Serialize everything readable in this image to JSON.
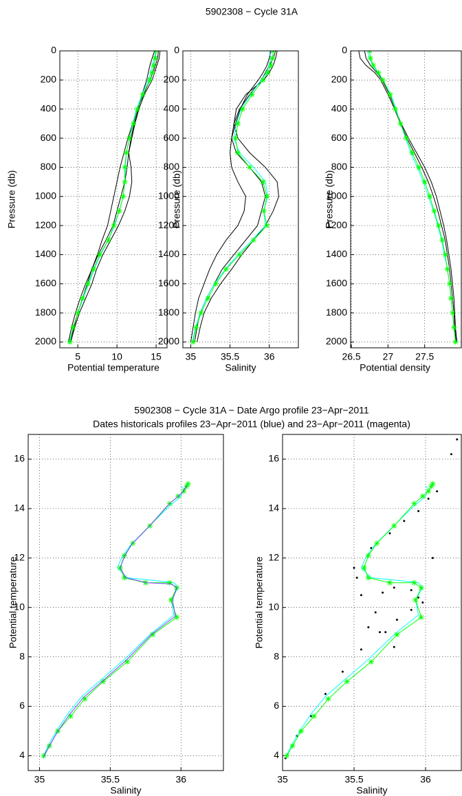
{
  "chart_data": [
    {
      "type": "profile",
      "title": "5902308 − Cycle  31A",
      "xlabel": "Potential temperature",
      "ylabel": "Pressure (db)",
      "xlim": [
        2.7,
        16.4
      ],
      "ylim": [
        0,
        2040
      ],
      "yreverse": true,
      "grid": true,
      "xticks": [
        5,
        10,
        15
      ],
      "yticks": [
        0,
        200,
        400,
        600,
        800,
        1000,
        1200,
        1400,
        1600,
        1800,
        2000
      ],
      "y": [
        0,
        50,
        100,
        150,
        200,
        300,
        400,
        500,
        600,
        700,
        800,
        900,
        1000,
        1100,
        1200,
        1300,
        1400,
        1500,
        1600,
        1700,
        1800,
        1900,
        2000
      ],
      "series": [
        {
          "color": "#000000",
          "values": [
            14.8,
            14.5,
            14.2,
            14.0,
            13.8,
            13.2,
            12.7,
            12.2,
            11.8,
            11.5,
            11.3,
            11.0,
            10.5,
            10.0,
            9.5,
            8.6,
            7.6,
            6.8,
            6.2,
            5.6,
            5.0,
            4.5,
            4.0
          ]
        },
        {
          "color": "#000000",
          "values": [
            15.3,
            15.2,
            14.9,
            14.6,
            14.2,
            13.4,
            12.6,
            12.0,
            11.4,
            10.9,
            10.4,
            10.0,
            9.6,
            9.2,
            8.8,
            8.1,
            7.5,
            6.8,
            6.0,
            5.3,
            4.7,
            4.2,
            3.8
          ]
        },
        {
          "color": "#000000",
          "values": [
            15.5,
            15.4,
            15.1,
            14.8,
            14.5,
            13.5,
            12.8,
            12.3,
            11.9,
            11.5,
            11.8,
            11.9,
            11.6,
            11.0,
            10.2,
            9.2,
            8.2,
            7.4,
            6.8,
            6.0,
            5.2,
            4.6,
            4.1
          ]
        },
        {
          "color": "#00ffff",
          "values": [
            14.9,
            14.8,
            14.5,
            14.3,
            14.0,
            13.2,
            12.5,
            12.0,
            11.6,
            11.2,
            11.1,
            11.0,
            10.8,
            10.3,
            9.7,
            8.9,
            7.9,
            7.1,
            6.4,
            5.7,
            5.0,
            4.4,
            3.9
          ]
        },
        {
          "color": "#00ff00",
          "marker": "star",
          "values": [
            15.0,
            14.9,
            14.7,
            14.5,
            14.2,
            13.3,
            12.6,
            12.1,
            11.6,
            11.2,
            11.0,
            11.0,
            10.8,
            10.3,
            9.6,
            8.9,
            7.8,
            7.0,
            6.3,
            5.6,
            5.0,
            4.4,
            4.0
          ]
        }
      ]
    },
    {
      "type": "profile",
      "xlabel": "Salinity",
      "ylabel": "Pressure (db)",
      "xlim": [
        34.9,
        36.37
      ],
      "ylim": [
        0,
        2040
      ],
      "yreverse": true,
      "grid": true,
      "xticks": [
        35,
        35.5,
        36
      ],
      "yticks": [
        0,
        200,
        400,
        600,
        800,
        1000,
        1200,
        1400,
        1600,
        1800,
        2000
      ],
      "y": [
        0,
        50,
        100,
        150,
        200,
        300,
        400,
        500,
        600,
        700,
        800,
        900,
        1000,
        1100,
        1200,
        1300,
        1400,
        1500,
        1600,
        1700,
        1800,
        1900,
        2000
      ],
      "series": [
        {
          "color": "#000000",
          "values": [
            36.08,
            36.05,
            36.0,
            35.95,
            35.9,
            35.75,
            35.62,
            35.55,
            35.52,
            35.58,
            35.75,
            35.9,
            35.95,
            35.9,
            35.85,
            35.7,
            35.55,
            35.4,
            35.3,
            35.2,
            35.12,
            35.08,
            35.05
          ]
        },
        {
          "color": "#000000",
          "values": [
            36.1,
            36.08,
            36.05,
            36.0,
            35.93,
            35.7,
            35.58,
            35.55,
            35.6,
            35.75,
            35.95,
            36.1,
            36.12,
            36.05,
            35.95,
            35.8,
            35.65,
            35.52,
            35.38,
            35.26,
            35.17,
            35.12,
            35.08
          ]
        },
        {
          "color": "#000000",
          "values": [
            36.02,
            36.0,
            35.97,
            35.92,
            35.86,
            35.72,
            35.63,
            35.57,
            35.52,
            35.5,
            35.52,
            35.6,
            35.7,
            35.68,
            35.6,
            35.45,
            35.33,
            35.24,
            35.17,
            35.1,
            35.06,
            35.03,
            35.0
          ]
        },
        {
          "color": "#00ffff",
          "values": [
            36.0,
            36.02,
            36.0,
            35.96,
            35.9,
            35.76,
            35.64,
            35.58,
            35.55,
            35.62,
            35.8,
            35.95,
            35.98,
            35.93,
            35.95,
            35.78,
            35.6,
            35.44,
            35.3,
            35.2,
            35.12,
            35.06,
            35.02
          ]
        },
        {
          "color": "#00ff00",
          "marker": "star",
          "values": [
            36.05,
            36.04,
            36.02,
            35.98,
            35.92,
            35.78,
            35.66,
            35.6,
            35.57,
            35.6,
            35.75,
            35.92,
            35.97,
            35.93,
            35.97,
            35.8,
            35.62,
            35.45,
            35.32,
            35.22,
            35.13,
            35.07,
            35.03
          ]
        }
      ]
    },
    {
      "type": "profile",
      "xlabel": "Potential density",
      "ylabel": "Pressure (db)",
      "xlim": [
        26.49,
        28.0
      ],
      "ylim": [
        0,
        2040
      ],
      "yreverse": true,
      "grid": true,
      "xticks": [
        26.5,
        27,
        27.5
      ],
      "yticks": [
        0,
        200,
        400,
        600,
        800,
        1000,
        1200,
        1400,
        1600,
        1800,
        2000
      ],
      "y": [
        0,
        50,
        100,
        150,
        200,
        300,
        400,
        500,
        600,
        700,
        800,
        900,
        1000,
        1100,
        1200,
        1300,
        1400,
        1500,
        1600,
        1700,
        1800,
        1900,
        2000
      ],
      "series": [
        {
          "color": "#000000",
          "values": [
            26.6,
            26.62,
            26.7,
            26.82,
            26.9,
            27.0,
            27.09,
            27.17,
            27.26,
            27.36,
            27.46,
            27.55,
            27.62,
            27.68,
            27.73,
            27.78,
            27.81,
            27.84,
            27.86,
            27.88,
            27.9,
            27.91,
            27.93
          ]
        },
        {
          "color": "#000000",
          "values": [
            26.68,
            26.7,
            26.76,
            26.85,
            26.92,
            27.02,
            27.1,
            27.18,
            27.28,
            27.39,
            27.5,
            27.59,
            27.66,
            27.71,
            27.76,
            27.8,
            27.83,
            27.86,
            27.88,
            27.9,
            27.91,
            27.92,
            27.94
          ]
        },
        {
          "color": "#00ffff",
          "values": [
            26.72,
            26.75,
            26.79,
            26.86,
            26.93,
            27.04,
            27.11,
            27.17,
            27.24,
            27.31,
            27.4,
            27.48,
            27.55,
            27.62,
            27.68,
            27.73,
            27.77,
            27.81,
            27.84,
            27.86,
            27.88,
            27.9,
            27.92
          ]
        },
        {
          "color": "#00ff00",
          "marker": "star",
          "values": [
            26.75,
            26.76,
            26.8,
            26.87,
            26.93,
            27.03,
            27.1,
            27.17,
            27.25,
            27.33,
            27.42,
            27.5,
            27.57,
            27.63,
            27.69,
            27.74,
            27.78,
            27.81,
            27.84,
            27.86,
            27.88,
            27.9,
            27.92
          ]
        }
      ]
    },
    {
      "type": "ts",
      "title": "5902308 − Cycle  31A − Date Argo profile 23−Apr−2011",
      "subtitle": "Dates historicals profiles 23−Apr−2011 (blue) and 23−Apr−2011 (magenta)",
      "xlabel": "Salinity",
      "ylabel": "Potential temperature",
      "xlim": [
        34.92,
        36.3
      ],
      "ylim": [
        3.4,
        17
      ],
      "grid": true,
      "xticks": [
        35,
        35.5,
        36
      ],
      "yticks": [
        4,
        6,
        8,
        10,
        12,
        14,
        16
      ],
      "series": [
        {
          "color": "#00ffff",
          "x": [
            36.0,
            36.02,
            36.0,
            35.96,
            35.9,
            35.76,
            35.64,
            35.58,
            35.55,
            35.62,
            35.8,
            35.95,
            35.98,
            35.93,
            35.95,
            35.78,
            35.6,
            35.44,
            35.3,
            35.2,
            35.12,
            35.06,
            35.02
          ],
          "values": [
            14.9,
            14.8,
            14.5,
            14.3,
            14.0,
            13.2,
            12.5,
            12.0,
            11.6,
            11.2,
            11.1,
            11.0,
            10.8,
            10.3,
            9.7,
            8.9,
            7.9,
            7.1,
            6.4,
            5.7,
            5.0,
            4.4,
            3.9
          ]
        },
        {
          "color": "#00ff00",
          "marker": "star",
          "x": [
            36.05,
            36.04,
            36.02,
            35.98,
            35.92,
            35.78,
            35.66,
            35.6,
            35.57,
            35.6,
            35.75,
            35.92,
            35.97,
            35.93,
            35.97,
            35.8,
            35.62,
            35.45,
            35.32,
            35.22,
            35.13,
            35.07,
            35.03
          ],
          "values": [
            15.0,
            14.9,
            14.7,
            14.5,
            14.2,
            13.3,
            12.6,
            12.1,
            11.6,
            11.2,
            11.0,
            11.0,
            10.8,
            10.3,
            9.6,
            8.9,
            7.8,
            7.0,
            6.3,
            5.6,
            5.0,
            4.4,
            4.0
          ]
        },
        {
          "color": "#8040ff",
          "x": [
            36.04,
            36.03,
            36.01,
            35.97,
            35.91,
            35.77,
            35.65,
            35.6,
            35.57,
            35.61,
            35.76,
            35.93,
            35.97,
            35.94,
            35.96,
            35.79,
            35.61,
            35.45,
            35.31,
            35.21,
            35.13,
            35.07,
            35.03
          ],
          "values": [
            14.95,
            14.85,
            14.65,
            14.45,
            14.15,
            13.25,
            12.55,
            12.05,
            11.6,
            11.2,
            11.0,
            10.95,
            10.8,
            10.3,
            9.65,
            8.9,
            7.85,
            7.05,
            6.35,
            5.65,
            5.0,
            4.4,
            3.95
          ]
        }
      ]
    },
    {
      "type": "ts",
      "xlabel": "Salinity",
      "ylabel": "Potential temperature",
      "xlim": [
        35.0,
        36.25
      ],
      "ylim": [
        3.4,
        17
      ],
      "grid": true,
      "xticks": [
        35,
        35.5,
        36
      ],
      "yticks": [
        4,
        6,
        8,
        10,
        12,
        14,
        16
      ],
      "series": [
        {
          "color": "#000000",
          "marker": "dot",
          "line": false,
          "x": [
            35.02,
            35.1,
            35.2,
            35.3,
            35.42,
            35.55,
            35.68,
            35.8,
            35.9,
            35.95,
            35.9,
            35.78,
            35.7,
            35.65,
            35.6,
            35.55,
            35.52,
            35.5,
            35.62,
            35.75,
            35.85,
            35.95,
            36.02,
            36.08,
            36.18,
            35.72,
            35.78,
            35.98,
            36.05,
            36.22
          ],
          "values": [
            3.9,
            4.8,
            5.6,
            6.5,
            7.4,
            8.3,
            9.0,
            9.5,
            9.9,
            10.4,
            10.7,
            10.8,
            10.6,
            9.8,
            9.2,
            10.5,
            11.2,
            11.6,
            12.4,
            13.0,
            13.5,
            13.9,
            14.4,
            14.7,
            16.2,
            9.0,
            8.4,
            10.2,
            12.0,
            16.8
          ]
        },
        {
          "color": "#00ffff",
          "x": [
            36.0,
            36.02,
            36.0,
            35.96,
            35.9,
            35.76,
            35.64,
            35.58,
            35.55,
            35.62,
            35.8,
            35.95,
            35.98,
            35.93,
            35.95,
            35.78,
            35.6,
            35.44,
            35.3,
            35.2,
            35.12,
            35.06,
            35.02
          ],
          "values": [
            14.9,
            14.8,
            14.5,
            14.3,
            14.0,
            13.2,
            12.5,
            12.0,
            11.6,
            11.2,
            11.1,
            11.0,
            10.8,
            10.3,
            9.7,
            8.9,
            7.9,
            7.1,
            6.4,
            5.7,
            5.0,
            4.4,
            3.9
          ]
        },
        {
          "color": "#00ff00",
          "marker": "star",
          "x": [
            36.05,
            36.04,
            36.02,
            35.98,
            35.92,
            35.78,
            35.66,
            35.6,
            35.57,
            35.6,
            35.75,
            35.92,
            35.97,
            35.93,
            35.97,
            35.8,
            35.62,
            35.45,
            35.32,
            35.22,
            35.13,
            35.07,
            35.03
          ],
          "values": [
            15.0,
            14.9,
            14.7,
            14.5,
            14.2,
            13.3,
            12.6,
            12.1,
            11.6,
            11.2,
            11.0,
            11.0,
            10.8,
            10.3,
            9.6,
            8.9,
            7.8,
            7.0,
            6.3,
            5.6,
            5.0,
            4.4,
            4.0
          ]
        }
      ]
    }
  ]
}
